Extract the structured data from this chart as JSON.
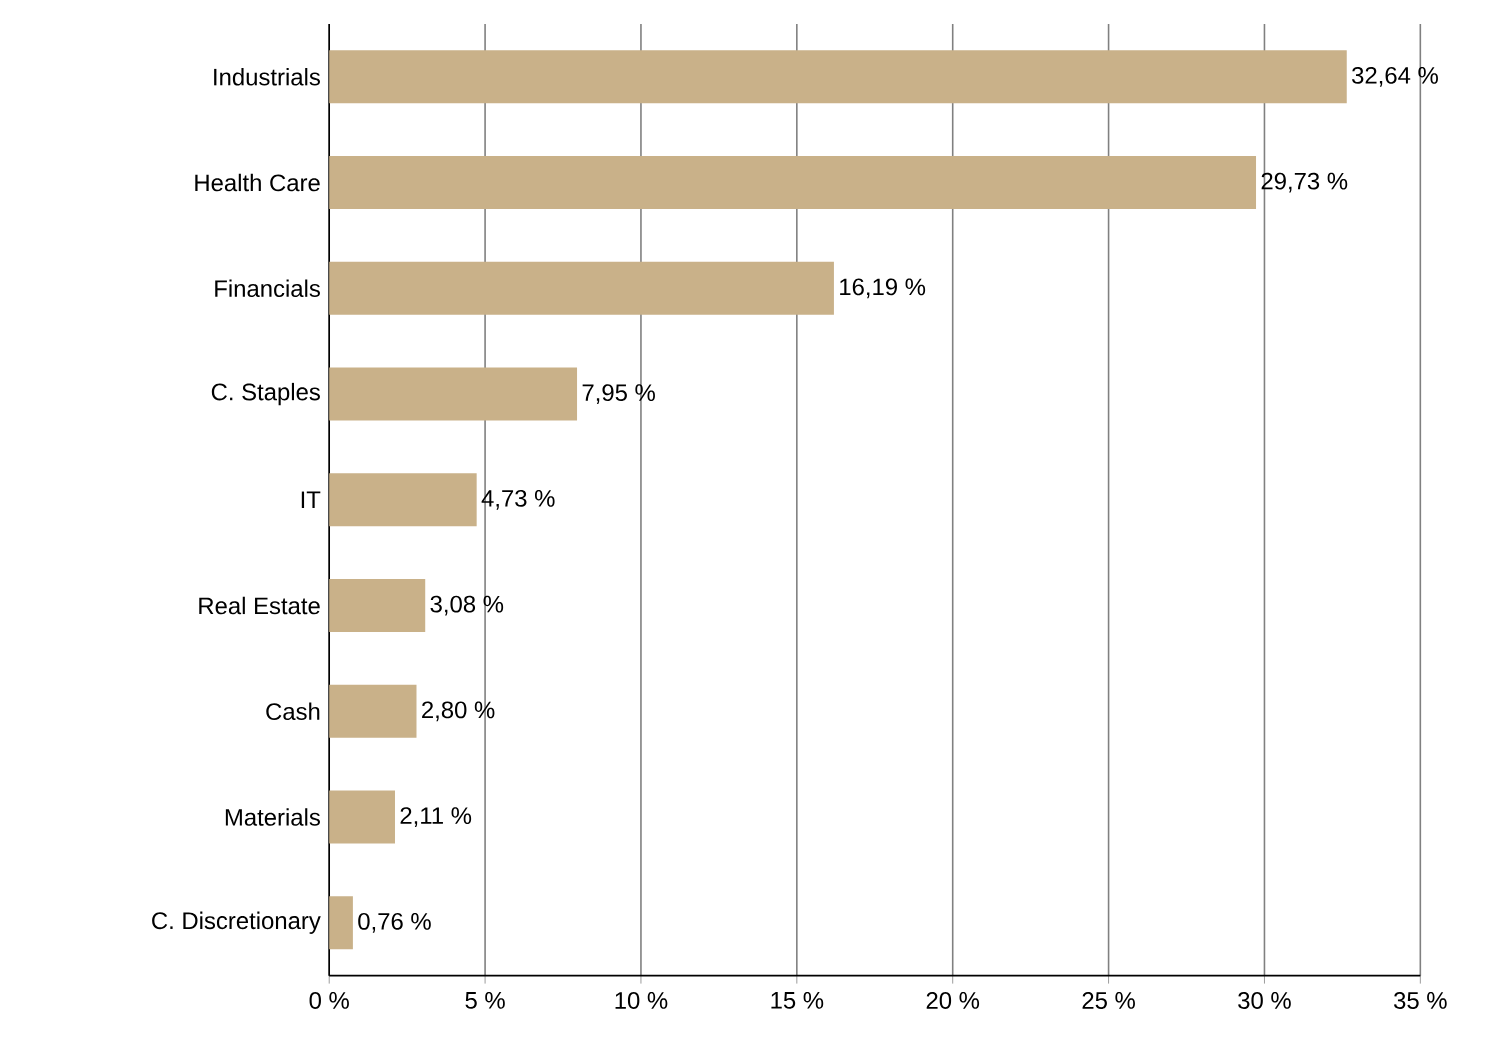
{
  "chart_data": {
    "type": "bar",
    "orientation": "horizontal",
    "categories": [
      "Industrials",
      "Health Care",
      "Financials",
      "C. Staples",
      "IT",
      "Real Estate",
      "Cash",
      "Materials",
      "C. Discretionary"
    ],
    "values": [
      32.64,
      29.73,
      16.19,
      7.95,
      4.73,
      3.08,
      2.8,
      2.11,
      0.76
    ],
    "value_labels": [
      "32,64 %",
      "29,73 %",
      "16,19 %",
      "7,95 %",
      "4,73 %",
      "3,08 %",
      "2,80 %",
      "2,11 %",
      "0,76 %"
    ],
    "color": "#c9b189",
    "xlim": [
      0,
      35
    ],
    "xticks": [
      {
        "value": 0,
        "label": "0 %"
      },
      {
        "value": 5,
        "label": "5 %"
      },
      {
        "value": 10,
        "label": "10 %"
      },
      {
        "value": 15,
        "label": "15 %"
      },
      {
        "value": 20,
        "label": "20 %"
      },
      {
        "value": 25,
        "label": "25 %"
      },
      {
        "value": 30,
        "label": "30 %"
      },
      {
        "value": 35,
        "label": "35 %"
      }
    ],
    "grid": "x"
  }
}
